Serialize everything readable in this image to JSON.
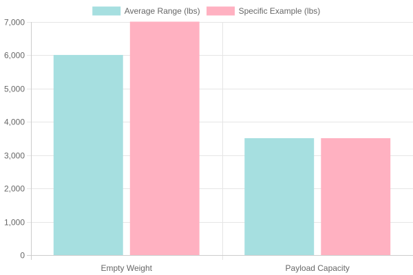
{
  "chart_data": {
    "type": "bar",
    "categories": [
      "Empty Weight",
      "Payload Capacity"
    ],
    "series": [
      {
        "name": "Average Range (lbs)",
        "values": [
          6000,
          3500
        ],
        "fill": "#a6dfe0",
        "stroke": "#a6dfe0"
      },
      {
        "name": "Specific Example (lbs)",
        "values": [
          7000,
          3500
        ],
        "fill": "#ffb1c1",
        "stroke": "#ffb1c1"
      }
    ],
    "ylim": [
      0,
      7000
    ],
    "yticks": [
      0,
      1000,
      2000,
      3000,
      4000,
      5000,
      6000,
      7000
    ],
    "ytick_labels": [
      "0",
      "1,000",
      "2,000",
      "3,000",
      "4,000",
      "5,000",
      "6,000",
      "7,000"
    ],
    "grid": true,
    "legend": "top-center",
    "gridColor": "#e5e5e5",
    "axisColor": "#cccccc"
  }
}
